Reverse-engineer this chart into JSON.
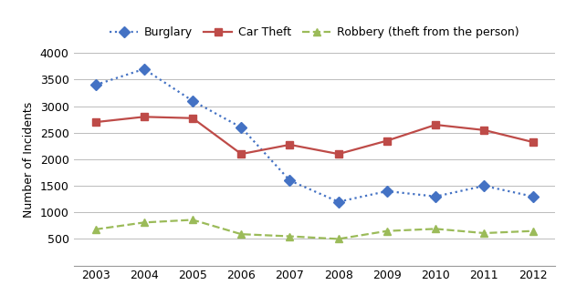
{
  "years": [
    2003,
    2004,
    2005,
    2006,
    2007,
    2008,
    2009,
    2010,
    2011,
    2012
  ],
  "burglary": [
    3400,
    3700,
    3100,
    2600,
    1600,
    1200,
    1400,
    1300,
    1500,
    1300
  ],
  "car_theft": [
    2700,
    2800,
    2775,
    2100,
    2275,
    2100,
    2350,
    2650,
    2550,
    2325
  ],
  "robbery": [
    680,
    810,
    860,
    590,
    550,
    500,
    650,
    690,
    610,
    650
  ],
  "burglary_color": "#4472C4",
  "car_theft_color": "#BE4B48",
  "robbery_color": "#9BBB59",
  "ylabel": "Number of Incidents",
  "ylim": [
    0,
    4000
  ],
  "yticks": [
    0,
    500,
    1000,
    1500,
    2000,
    2500,
    3000,
    3500,
    4000
  ],
  "legend_labels": [
    "Burglary",
    "Car Theft",
    "Robbery (theft from the person)"
  ],
  "background_color": "#ffffff"
}
